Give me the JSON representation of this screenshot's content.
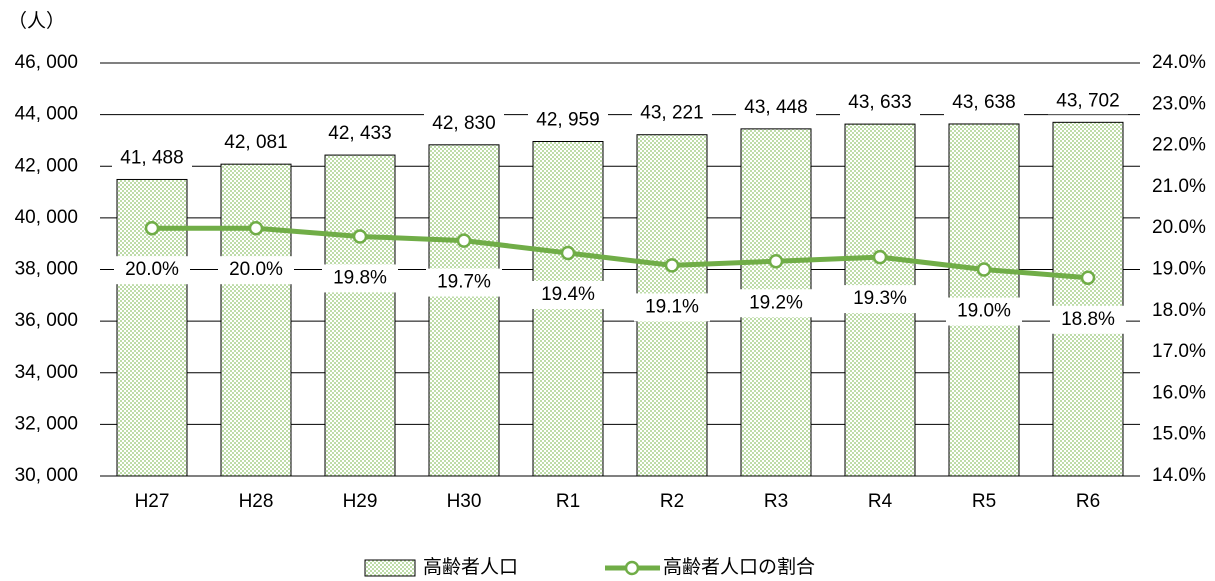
{
  "chart_data": {
    "type": "combo",
    "y_unit_label": "（人）",
    "categories": [
      "H27",
      "H28",
      "H29",
      "H30",
      "R1",
      "R2",
      "R3",
      "R4",
      "R5",
      "R6"
    ],
    "series": [
      {
        "name": "高齢者人口",
        "type": "bar",
        "axis": "y",
        "color": "#a9d18e",
        "values": [
          41488,
          42081,
          42433,
          42830,
          42959,
          43221,
          43448,
          43633,
          43638,
          43702
        ],
        "value_labels": [
          "41, 488",
          "42, 081",
          "42, 433",
          "42, 830",
          "42, 959",
          "43, 221",
          "43, 448",
          "43, 633",
          "43, 638",
          "43, 702"
        ]
      },
      {
        "name": "高齢者人口の割合",
        "type": "line",
        "axis": "y2",
        "color": "#70ad47",
        "values": [
          20.0,
          20.0,
          19.8,
          19.7,
          19.4,
          19.1,
          19.2,
          19.3,
          19.0,
          18.8
        ],
        "value_labels": [
          "20.0%",
          "20.0%",
          "19.8%",
          "19.7%",
          "19.4%",
          "19.1%",
          "19.2%",
          "19.3%",
          "19.0%",
          "18.8%"
        ]
      }
    ],
    "ylim": [
      30000,
      46000
    ],
    "yticks": [
      {
        "value": 30000,
        "label": "30, 000"
      },
      {
        "value": 32000,
        "label": "32, 000"
      },
      {
        "value": 34000,
        "label": "34, 000"
      },
      {
        "value": 36000,
        "label": "36, 000"
      },
      {
        "value": 38000,
        "label": "38, 000"
      },
      {
        "value": 40000,
        "label": "40, 000"
      },
      {
        "value": 42000,
        "label": "42, 000"
      },
      {
        "value": 44000,
        "label": "44, 000"
      },
      {
        "value": 46000,
        "label": "46, 000"
      }
    ],
    "y2lim": [
      14,
      24
    ],
    "y2ticks": [
      {
        "value": 14,
        "label": "14.0%"
      },
      {
        "value": 15,
        "label": "15.0%"
      },
      {
        "value": 16,
        "label": "16.0%"
      },
      {
        "value": 17,
        "label": "17.0%"
      },
      {
        "value": 18,
        "label": "18.0%"
      },
      {
        "value": 19,
        "label": "19.0%"
      },
      {
        "value": 20,
        "label": "20.0%"
      },
      {
        "value": 21,
        "label": "21.0%"
      },
      {
        "value": 22,
        "label": "22.0%"
      },
      {
        "value": 23,
        "label": "23.0%"
      },
      {
        "value": 24,
        "label": "24.0%"
      }
    ],
    "grid": true,
    "legend": "bottom"
  }
}
